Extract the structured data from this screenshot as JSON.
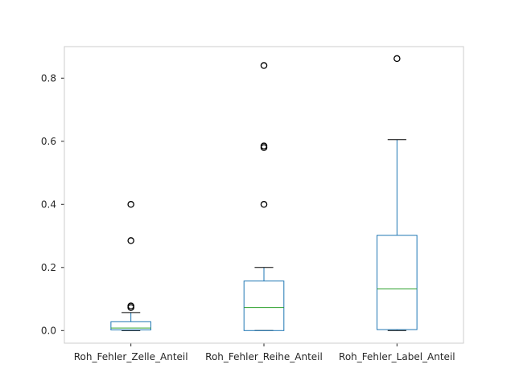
{
  "chart_data": {
    "type": "box",
    "title": "",
    "xlabel": "",
    "ylabel": "",
    "ylim": [
      -0.04,
      0.9
    ],
    "grid": false,
    "yticks": [
      "0.0",
      "0.2",
      "0.4",
      "0.6",
      "0.8"
    ],
    "ytick_values": [
      0.0,
      0.2,
      0.4,
      0.6,
      0.8
    ],
    "colors": {
      "box": "#1f77b4",
      "median": "#2ca02c",
      "whisker": "#1f77b4",
      "cap": "#000000",
      "flier": "#000000",
      "frame": "#cccccc"
    },
    "categories": [
      "Roh_Fehler_Zelle_Anteil",
      "Roh_Fehler_Reihe_Anteil",
      "Roh_Fehler_Label_Anteil"
    ],
    "boxes": [
      {
        "name": "Roh_Fehler_Zelle_Anteil",
        "whislo": 0.0,
        "q1": 0.002,
        "med": 0.008,
        "q3": 0.028,
        "whishi": 0.057,
        "fliers": [
          0.073,
          0.078,
          0.285,
          0.4
        ]
      },
      {
        "name": "Roh_Fehler_Reihe_Anteil",
        "whislo": 0.0,
        "q1": 0.0,
        "med": 0.073,
        "q3": 0.157,
        "whishi": 0.2,
        "fliers": [
          0.4,
          0.58,
          0.585,
          0.84
        ]
      },
      {
        "name": "Roh_Fehler_Label_Anteil",
        "whislo": 0.0,
        "q1": 0.003,
        "med": 0.132,
        "q3": 0.302,
        "whishi": 0.605,
        "fliers": [
          0.862
        ]
      }
    ]
  }
}
